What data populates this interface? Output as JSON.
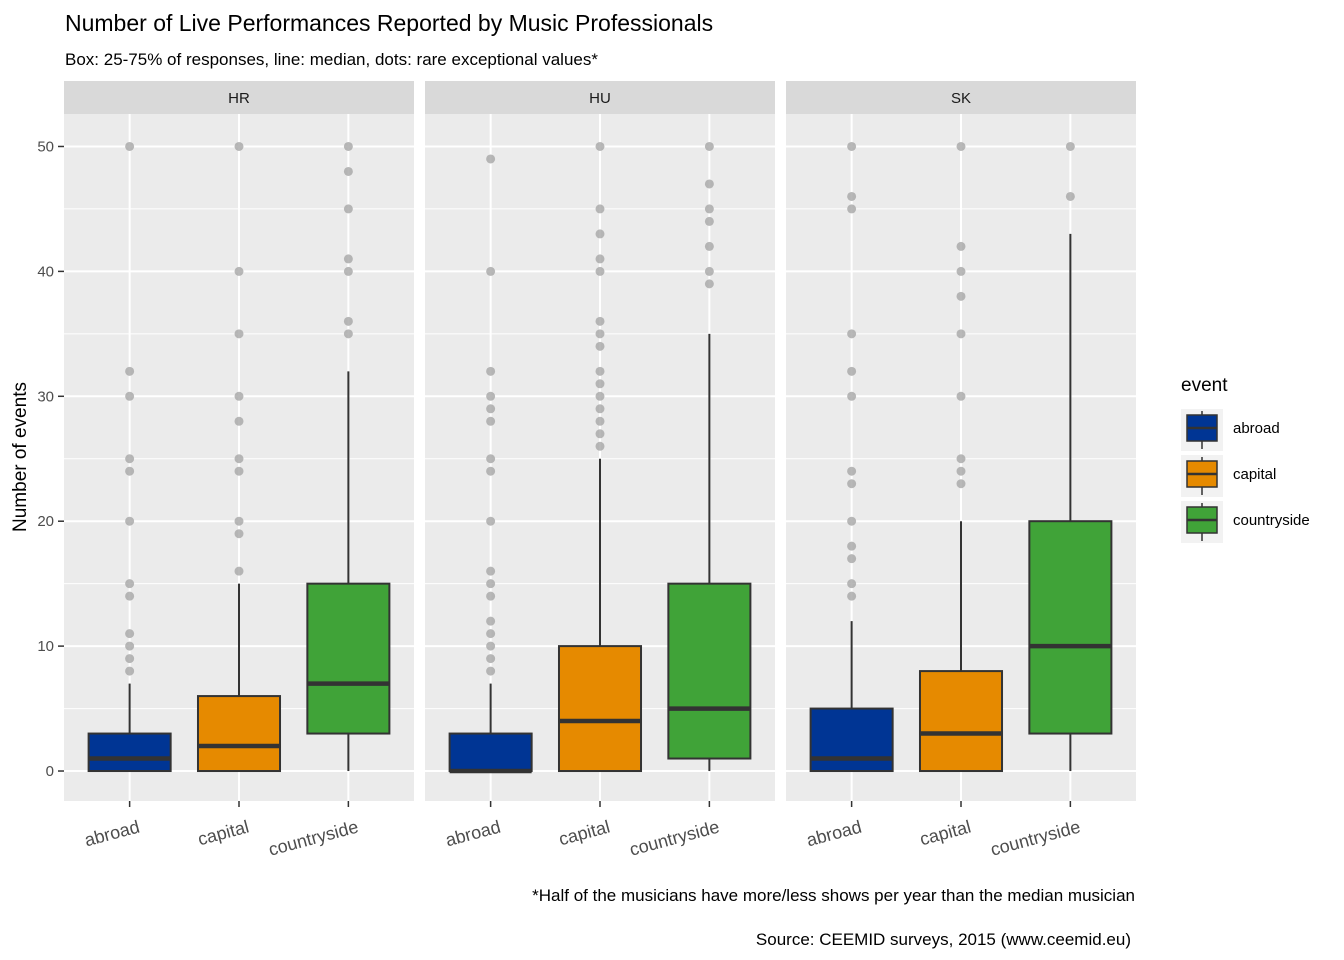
{
  "chart_data": {
    "type": "boxplot",
    "title": "Number of Live Performances Reported by Music Professionals",
    "subtitle": "Box: 25-75% of responses, line: median, dots: rare exceptional values*",
    "ylabel": "Number of events",
    "xlabel": "",
    "ylim": [
      -2.4,
      52.6
    ],
    "y_ticks": [
      0,
      10,
      20,
      30,
      40,
      50
    ],
    "categories": [
      "abroad",
      "capital",
      "countryside"
    ],
    "legend": {
      "title": "event",
      "placement": "right",
      "entries": [
        {
          "label": "abroad",
          "color": "#003594"
        },
        {
          "label": "capital",
          "color": "#E68A00"
        },
        {
          "label": "countryside",
          "color": "#40A338"
        }
      ]
    },
    "facets": [
      {
        "label": "HR",
        "boxes": [
          {
            "category": "abroad",
            "min": 0,
            "q1": 0,
            "median": 1,
            "q3": 3,
            "max": 7,
            "outliers": [
              8,
              9,
              10,
              11,
              14,
              15,
              20,
              24,
              25,
              30,
              32,
              50
            ]
          },
          {
            "category": "capital",
            "min": 0,
            "q1": 0,
            "median": 2,
            "q3": 6,
            "max": 15,
            "outliers": [
              16,
              19,
              20,
              24,
              25,
              28,
              30,
              35,
              40,
              50
            ]
          },
          {
            "category": "countryside",
            "min": 0,
            "q1": 3,
            "median": 7,
            "q3": 15,
            "max": 32,
            "outliers": [
              35,
              36,
              40,
              41,
              45,
              48,
              50
            ]
          }
        ]
      },
      {
        "label": "HU",
        "boxes": [
          {
            "category": "abroad",
            "min": 0,
            "q1": 0,
            "median": 0,
            "q3": 3,
            "max": 7,
            "outliers": [
              8,
              9,
              10,
              11,
              12,
              14,
              15,
              16,
              20,
              24,
              25,
              28,
              29,
              30,
              32,
              40,
              49
            ]
          },
          {
            "category": "capital",
            "min": 0,
            "q1": 0,
            "median": 4,
            "q3": 10,
            "max": 25,
            "outliers": [
              26,
              27,
              28,
              29,
              30,
              31,
              32,
              34,
              35,
              36,
              40,
              41,
              43,
              45,
              50
            ]
          },
          {
            "category": "countryside",
            "min": 0,
            "q1": 1,
            "median": 5,
            "q3": 15,
            "max": 35,
            "outliers": [
              39,
              40,
              42,
              44,
              45,
              47,
              50
            ]
          }
        ]
      },
      {
        "label": "SK",
        "boxes": [
          {
            "category": "abroad",
            "min": 0,
            "q1": 0,
            "median": 1,
            "q3": 5,
            "max": 12,
            "outliers": [
              14,
              15,
              17,
              18,
              20,
              23,
              24,
              30,
              32,
              35,
              45,
              46,
              50
            ]
          },
          {
            "category": "capital",
            "min": 0,
            "q1": 0,
            "median": 3,
            "q3": 8,
            "max": 20,
            "outliers": [
              23,
              24,
              25,
              30,
              35,
              38,
              40,
              42,
              50
            ]
          },
          {
            "category": "countryside",
            "min": 0,
            "q1": 3,
            "median": 10,
            "q3": 20,
            "max": 43,
            "outliers": [
              46,
              50
            ]
          }
        ]
      }
    ],
    "grid": true,
    "panel_background": "#EBEBEB",
    "strip_background": "#D9D9D9",
    "outlier_color": "#A6A6A6",
    "captions": [
      "*Half of the musicians have more/less shows per year than the median musician",
      "Source: CEEMID surveys, 2015 (www.ceemid.eu)"
    ]
  }
}
